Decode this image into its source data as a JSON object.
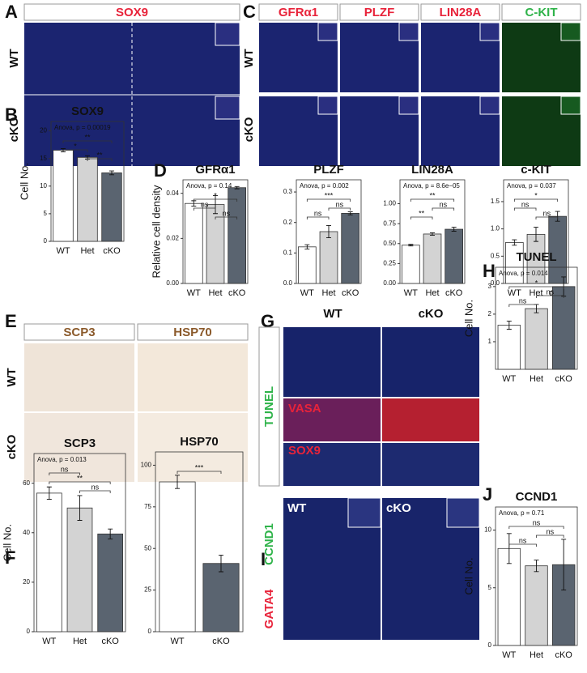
{
  "panels": {
    "A": {
      "letter": "A",
      "header": "SOX9",
      "rows": [
        "WT",
        "cKO"
      ]
    },
    "C": {
      "letter": "C",
      "headers": [
        "GFRα1",
        "PLZF",
        "LIN28A",
        "C-KIT"
      ],
      "rows": [
        "WT",
        "cKO"
      ]
    },
    "E": {
      "letter": "E",
      "headers": [
        "SCP3",
        "HSP70"
      ],
      "rows": [
        "WT",
        "cKO"
      ]
    },
    "G": {
      "letter": "G",
      "columns": [
        "WT",
        "cKO"
      ],
      "side_label": "TUNEL",
      "labels": [
        "VASA",
        "SOX9"
      ]
    },
    "I": {
      "letter": "I",
      "labels": [
        "WT",
        "cKO"
      ],
      "side_labels": [
        "GATA4",
        "CCND1"
      ]
    }
  },
  "chart_data": [
    {
      "type": "bar",
      "panel": "B",
      "title": "SOX9",
      "subtitle": "Anova, p = 0.00019",
      "ylabel": "Cell No.",
      "categories": [
        "WT",
        "Het",
        "cKO"
      ],
      "values": [
        16.5,
        15.2,
        12.4
      ],
      "errors": [
        0.3,
        0.3,
        0.35
      ],
      "colors": [
        "#ffffff",
        "#d3d3d3",
        "#5a6470"
      ],
      "ylim": [
        0,
        21.7
      ],
      "yticks": [
        0,
        5,
        10,
        15,
        20
      ],
      "brackets": [
        {
          "from": 0,
          "to": 2,
          "label": "**"
        },
        {
          "from": 0,
          "to": 1,
          "label": "*"
        },
        {
          "from": 1,
          "to": 2,
          "label": "**"
        }
      ]
    },
    {
      "type": "bar",
      "panel": "D",
      "title": "GFRα1",
      "subtitle": "Anova, p = 0.14",
      "ylabel": "Relative cell density",
      "categories": [
        "WT",
        "Het",
        "cKO"
      ],
      "values": [
        0.0355,
        0.035,
        0.0425
      ],
      "errors": [
        0.0012,
        0.004,
        0.0005
      ],
      "colors": [
        "#ffffff",
        "#d3d3d3",
        "#5a6470"
      ],
      "ylim": [
        0,
        0.046
      ],
      "yticks": [
        {
          "value": 0,
          "label": "0.00"
        },
        {
          "value": 0.02,
          "label": "0.02"
        },
        {
          "value": 0.04,
          "label": "0.04"
        }
      ],
      "brackets": [
        {
          "from": 0,
          "to": 2,
          "label": "*"
        },
        {
          "from": 0,
          "to": 1,
          "label": "ns"
        },
        {
          "from": 1,
          "to": 2,
          "label": "ns"
        }
      ]
    },
    {
      "type": "bar",
      "title": "PLZF",
      "subtitle": "Anova, p = 0.002",
      "categories": [
        "WT",
        "Het",
        "cKO"
      ],
      "values": [
        0.12,
        0.17,
        0.23
      ],
      "errors": [
        0.007,
        0.02,
        0.005
      ],
      "colors": [
        "#ffffff",
        "#d3d3d3",
        "#5a6470"
      ],
      "ylim": [
        0,
        0.34
      ],
      "yticks": [
        {
          "value": 0,
          "label": "0.0"
        },
        {
          "value": 0.1,
          "label": "0.1"
        },
        {
          "value": 0.2,
          "label": "0.2"
        },
        {
          "value": 0.3,
          "label": "0.3"
        }
      ],
      "brackets": [
        {
          "from": 0,
          "to": 2,
          "label": "***"
        },
        {
          "from": 1,
          "to": 2,
          "label": "ns"
        },
        {
          "from": 0,
          "to": 1,
          "label": "ns"
        }
      ]
    },
    {
      "type": "bar",
      "title": "LIN28A",
      "subtitle": "Anova, p = 8.6e−05",
      "categories": [
        "WT",
        "Het",
        "cKO"
      ],
      "values": [
        0.48,
        0.62,
        0.68
      ],
      "errors": [
        0.01,
        0.015,
        0.025
      ],
      "colors": [
        "#ffffff",
        "#d3d3d3",
        "#5a6470"
      ],
      "ylim": [
        0,
        1.3
      ],
      "yticks": [
        {
          "value": 0,
          "label": "0.00"
        },
        {
          "value": 0.25,
          "label": "0.25"
        },
        {
          "value": 0.5,
          "label": "0.50"
        },
        {
          "value": 0.75,
          "label": "0.75"
        },
        {
          "value": 1,
          "label": "1.00"
        }
      ],
      "brackets": [
        {
          "from": 0,
          "to": 2,
          "label": "**"
        },
        {
          "from": 1,
          "to": 2,
          "label": "ns"
        },
        {
          "from": 0,
          "to": 1,
          "label": "**"
        }
      ]
    },
    {
      "type": "bar",
      "title": "c-KIT",
      "subtitle": "Anova, p = 0.037",
      "categories": [
        "WT",
        "Het",
        "cKO"
      ],
      "values": [
        0.75,
        0.9,
        1.23
      ],
      "errors": [
        0.05,
        0.13,
        0.09
      ],
      "colors": [
        "#ffffff",
        "#d3d3d3",
        "#5a6470"
      ],
      "ylim": [
        0,
        1.9
      ],
      "yticks": [
        {
          "value": 0,
          "label": "0.0"
        },
        {
          "value": 0.5,
          "label": "0.5"
        },
        {
          "value": 1,
          "label": "1.0"
        },
        {
          "value": 1.5,
          "label": "1.5"
        }
      ],
      "brackets": [
        {
          "from": 0,
          "to": 2,
          "label": "*"
        },
        {
          "from": 0,
          "to": 1,
          "label": "ns"
        },
        {
          "from": 1,
          "to": 2,
          "label": "ns"
        }
      ]
    },
    {
      "type": "bar",
      "panel": "F",
      "title": "SCP3",
      "subtitle": "Anova, p = 0.013",
      "ylabel": "Cell No.",
      "categories": [
        "WT",
        "Het",
        "cKO"
      ],
      "values": [
        56,
        50,
        39.5
      ],
      "errors": [
        2.5,
        5,
        2
      ],
      "colors": [
        "#ffffff",
        "#d3d3d3",
        "#5a6470"
      ],
      "ylim": [
        0,
        72
      ],
      "yticks": [
        0,
        20,
        40,
        60
      ],
      "brackets": [
        {
          "from": 0,
          "to": 1,
          "label": "ns"
        },
        {
          "from": 0,
          "to": 2,
          "label": "**"
        },
        {
          "from": 1,
          "to": 2,
          "label": "ns"
        }
      ]
    },
    {
      "type": "bar",
      "title": "HSP70",
      "categories": [
        "WT",
        "cKO"
      ],
      "values": [
        90,
        41
      ],
      "errors": [
        4,
        5
      ],
      "colors": [
        "#ffffff",
        "#5a6470"
      ],
      "ylim": [
        0,
        108
      ],
      "yticks": [
        0,
        25,
        50,
        75,
        100
      ],
      "brackets": [
        {
          "from": 0,
          "to": 1,
          "label": "***"
        }
      ]
    },
    {
      "type": "bar",
      "panel": "H",
      "title": "TUNEL",
      "subtitle": "Anova, p = 0.014",
      "ylabel": "Cell No.",
      "categories": [
        "WT",
        "Het",
        "cKO"
      ],
      "values": [
        1.6,
        2.2,
        3.0
      ],
      "errors": [
        0.15,
        0.15,
        0.35
      ],
      "colors": [
        "#ffffff",
        "#d3d3d3",
        "#5a6470"
      ],
      "ylim": [
        0,
        3.7
      ],
      "yticks": [
        1,
        2,
        3
      ],
      "brackets": [
        {
          "from": 0,
          "to": 2,
          "label": "*"
        },
        {
          "from": 1,
          "to": 2,
          "label": "ns"
        },
        {
          "from": 0,
          "to": 1,
          "label": "ns"
        }
      ]
    },
    {
      "type": "bar",
      "panel": "J",
      "title": "CCND1",
      "subtitle": "Anova, p = 0.71",
      "ylabel": "Cell No.",
      "categories": [
        "WT",
        "Het",
        "cKO"
      ],
      "values": [
        8.4,
        6.9,
        7.0
      ],
      "errors": [
        1.3,
        0.5,
        2.2
      ],
      "colors": [
        "#ffffff",
        "#d3d3d3",
        "#5a6470"
      ],
      "ylim": [
        0,
        12
      ],
      "yticks": [
        0,
        5,
        10
      ],
      "brackets": [
        {
          "from": 0,
          "to": 2,
          "label": "ns"
        },
        {
          "from": 1,
          "to": 2,
          "label": "ns"
        },
        {
          "from": 0,
          "to": 1,
          "label": "ns"
        }
      ]
    }
  ]
}
